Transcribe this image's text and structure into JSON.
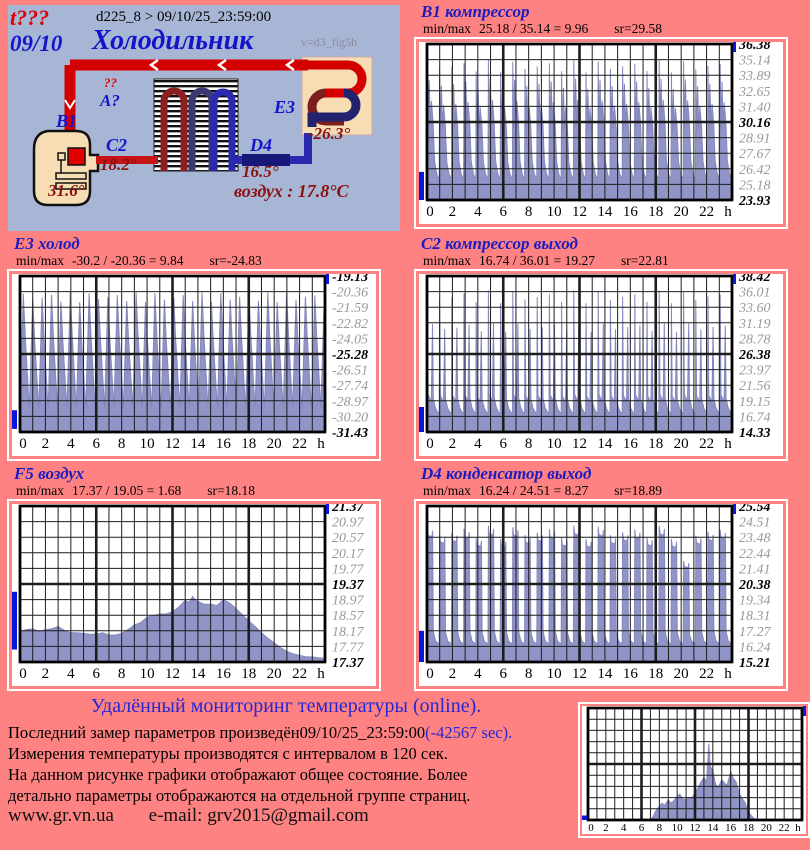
{
  "colors": {
    "page_bg": "#ff8282",
    "panel_bg": "#a8b6d5",
    "title_blue": "#1c1cc0",
    "dark_red": "#8b1212",
    "series_fill": "#9194c7",
    "tick_gray": "#999999",
    "indicator_blue": "#0b16dd"
  },
  "diagram": {
    "t_label": "t???",
    "date_label": "09/10",
    "device_header": "d225_8  >  09/10/25_23:59:00",
    "title": "Холодильник",
    "version": "v=d3_fig5b",
    "labels": {
      "q1": "??",
      "q2": "A?",
      "b1": "B1",
      "c2": "C2",
      "d4": "D4",
      "e3": "E3",
      "t_b1": "31.6°",
      "t_c2": "18.2°",
      "t_d4": "16.5°",
      "t_e3": "-26.3°",
      "air": "воздух : 17.8°C"
    }
  },
  "footer": {
    "heading": "Удалённый мониторинг температуры (online).",
    "line1_black": "Последний замер параметров произведён",
    "line1_time": "09/10/25_23:59:00",
    "line1_blue": "(-42567 sec).",
    "line2": "Измерения температуры  производятся с интервалом в 120 сек.",
    "line3": "На данном рисунке графики отображают общее состояние. Более",
    "line4": "детально параметры отображаются на отдельной группе страниц.",
    "site": "www.gr.vn.ua",
    "email": "e-mail: grv2015@gmail.com"
  },
  "chart_data": [
    {
      "id": "b1",
      "type": "area",
      "title": "B1 компрессор",
      "minmax_label": "min/max",
      "minmax": "25.18 / 35.14 = 9.96",
      "sr": "sr=29.58",
      "stats": {
        "min": 25.18,
        "max": 35.14,
        "range": 9.96,
        "avg": 29.58
      },
      "ylim": [
        23.93,
        36.38
      ],
      "yticks": [
        "36.38",
        "35.14",
        "33.89",
        "32.65",
        "31.40",
        "30.16",
        "28.91",
        "27.67",
        "26.42",
        "25.18",
        "23.93"
      ],
      "xticks": [
        "0",
        "2",
        "4",
        "6",
        "8",
        "10",
        "12",
        "14",
        "16",
        "18",
        "20",
        "22"
      ],
      "xunit": "h",
      "pattern": {
        "kind": "cycles",
        "period_h": 0.96,
        "jitter": 0.5,
        "shape": [
          [
            0,
            25.8
          ],
          [
            0.03,
            34.6
          ],
          [
            0.1,
            29.5
          ],
          [
            0.18,
            33.2
          ],
          [
            0.28,
            29.8
          ],
          [
            0.36,
            31.6
          ],
          [
            0.5,
            30.0
          ],
          [
            0.62,
            27.0
          ],
          [
            0.8,
            26.0
          ],
          [
            0.97,
            25.6
          ]
        ]
      },
      "indicator": [
        0.82,
        1.0
      ]
    },
    {
      "id": "e3",
      "type": "area",
      "title": "E3 холод",
      "minmax_label": "min/max",
      "minmax": "-30.2 / -20.36 = 9.84",
      "sr": "sr=-24.83",
      "stats": {
        "min": -30.2,
        "max": -20.36,
        "range": 9.84,
        "avg": -24.83
      },
      "ylim": [
        -31.43,
        -19.13
      ],
      "yticks": [
        "-19.13",
        "-20.36",
        "-21.59",
        "-22.82",
        "-24.05",
        "-25.28",
        "-26.51",
        "-27.74",
        "-28.97",
        "-30.20",
        "-31.43"
      ],
      "xticks": [
        "0",
        "2",
        "4",
        "6",
        "8",
        "10",
        "12",
        "14",
        "16",
        "18",
        "20",
        "22"
      ],
      "xunit": "h",
      "pattern": {
        "kind": "cycles",
        "period_h": 0.74,
        "jitter": 0.4,
        "shape": [
          [
            0,
            -29.5
          ],
          [
            0.35,
            -20.8
          ],
          [
            0.55,
            -24.0
          ],
          [
            0.97,
            -29.3
          ]
        ]
      },
      "indicator": [
        0.86,
        0.98
      ]
    },
    {
      "id": "c2",
      "type": "area",
      "title": "C2 компрессор выход",
      "minmax_label": "min/max",
      "minmax": "16.74 / 36.01 = 19.27",
      "sr": "sr=22.81",
      "stats": {
        "min": 16.74,
        "max": 36.01,
        "range": 19.27,
        "avg": 22.81
      },
      "ylim": [
        14.33,
        38.42
      ],
      "yticks": [
        "38.42",
        "36.01",
        "33.60",
        "31.19",
        "28.78",
        "26.38",
        "23.97",
        "21.56",
        "19.15",
        "16.74",
        "14.33"
      ],
      "xticks": [
        "0",
        "2",
        "4",
        "6",
        "8",
        "10",
        "12",
        "14",
        "16",
        "18",
        "20",
        "22"
      ],
      "xunit": "h",
      "pattern": {
        "kind": "cycles",
        "period_h": 0.96,
        "jitter": 1.0,
        "shape": [
          [
            0,
            17.4
          ],
          [
            0.03,
            35.2
          ],
          [
            0.1,
            20.0
          ],
          [
            0.35,
            19.0
          ],
          [
            0.45,
            30.5
          ],
          [
            0.52,
            19.5
          ],
          [
            0.7,
            18.0
          ],
          [
            0.97,
            17.1
          ]
        ]
      },
      "indicator": [
        0.84,
        1.0
      ]
    },
    {
      "id": "f5",
      "type": "area",
      "title": "F5 воздух",
      "minmax_label": "min/max",
      "minmax": "17.37 / 19.05 = 1.68",
      "sr": "sr=18.18",
      "stats": {
        "min": 17.37,
        "max": 19.05,
        "range": 1.68,
        "avg": 18.18
      },
      "ylim": [
        17.37,
        21.37
      ],
      "yticks": [
        "21.37",
        "20.97",
        "20.57",
        "20.17",
        "19.77",
        "19.37",
        "18.97",
        "18.57",
        "18.17",
        "17.77",
        "17.37"
      ],
      "xticks": [
        "0",
        "2",
        "4",
        "6",
        "8",
        "10",
        "12",
        "14",
        "16",
        "18",
        "20",
        "22"
      ],
      "xunit": "h",
      "series": [
        [
          0,
          18.15
        ],
        [
          0.5,
          18.2
        ],
        [
          1,
          18.22
        ],
        [
          1.5,
          18.15
        ],
        [
          2,
          18.2
        ],
        [
          2.5,
          18.22
        ],
        [
          3,
          18.28
        ],
        [
          3.5,
          18.18
        ],
        [
          4,
          18.12
        ],
        [
          4.5,
          18.12
        ],
        [
          5,
          18.1
        ],
        [
          5.5,
          18.08
        ],
        [
          6,
          18.08
        ],
        [
          6.5,
          18.12
        ],
        [
          7,
          18.06
        ],
        [
          7.5,
          18.06
        ],
        [
          8,
          18.1
        ],
        [
          8.5,
          18.2
        ],
        [
          9,
          18.32
        ],
        [
          9.5,
          18.38
        ],
        [
          10,
          18.52
        ],
        [
          10.5,
          18.56
        ],
        [
          11,
          18.6
        ],
        [
          11.5,
          18.6
        ],
        [
          12,
          18.66
        ],
        [
          12.5,
          18.78
        ],
        [
          13,
          18.95
        ],
        [
          13.3,
          18.9
        ],
        [
          13.6,
          19.05
        ],
        [
          13.8,
          18.95
        ],
        [
          14,
          18.92
        ],
        [
          14.5,
          18.85
        ],
        [
          15,
          18.85
        ],
        [
          15.5,
          18.82
        ],
        [
          16,
          18.96
        ],
        [
          16.5,
          18.88
        ],
        [
          17,
          18.74
        ],
        [
          17.5,
          18.58
        ],
        [
          18,
          18.42
        ],
        [
          18.5,
          18.28
        ],
        [
          19,
          18.12
        ],
        [
          19.5,
          17.98
        ],
        [
          20,
          17.86
        ],
        [
          20.5,
          17.74
        ],
        [
          21,
          17.64
        ],
        [
          21.5,
          17.58
        ],
        [
          22,
          17.54
        ],
        [
          22.5,
          17.5
        ],
        [
          23,
          17.5
        ],
        [
          23.5,
          17.48
        ],
        [
          24,
          17.46
        ]
      ],
      "indicator": [
        0.55,
        0.92
      ]
    },
    {
      "id": "d4",
      "type": "area",
      "title": "D4 конденсатор выход",
      "minmax_label": "min/max",
      "minmax": "16.24 / 24.51 = 8.27",
      "sr": "sr=18.89",
      "stats": {
        "min": 16.24,
        "max": 24.51,
        "range": 8.27,
        "avg": 18.89
      },
      "ylim": [
        15.21,
        25.54
      ],
      "yticks": [
        "25.54",
        "24.51",
        "23.48",
        "22.44",
        "21.41",
        "20.38",
        "19.34",
        "18.31",
        "17.27",
        "16.24",
        "15.21"
      ],
      "xticks": [
        "0",
        "2",
        "4",
        "6",
        "8",
        "10",
        "12",
        "14",
        "16",
        "18",
        "20",
        "22"
      ],
      "xunit": "h",
      "pattern": {
        "kind": "cycles",
        "period_h": 0.96,
        "jitter": 0.45,
        "peak_overrides": {
          "21": 21.9
        },
        "shape": [
          [
            0,
            16.5
          ],
          [
            0.03,
            23.8
          ],
          [
            0.1,
            23.3
          ],
          [
            0.4,
            23.2
          ],
          [
            0.46,
            23.6
          ],
          [
            0.52,
            17.2
          ],
          [
            0.7,
            16.6
          ],
          [
            0.97,
            16.4
          ]
        ]
      },
      "indicator": [
        0.8,
        1.0
      ]
    },
    {
      "id": "overview",
      "type": "area",
      "title": "",
      "minmax_label": "",
      "minmax": "",
      "sr": "",
      "ylim": [
        0,
        10
      ],
      "yticks": [],
      "xticks": [
        "0",
        "2",
        "4",
        "6",
        "8",
        "10",
        "12",
        "14",
        "16",
        "18",
        "20",
        "22"
      ],
      "xunit": "h",
      "series": [
        [
          0,
          0
        ],
        [
          7,
          0
        ],
        [
          7.3,
          0.3
        ],
        [
          7.6,
          0.8
        ],
        [
          8,
          1.2
        ],
        [
          8.3,
          1.5
        ],
        [
          8.6,
          1.3
        ],
        [
          9,
          1.8
        ],
        [
          9.3,
          1.5
        ],
        [
          9.6,
          1.7
        ],
        [
          10,
          2.1
        ],
        [
          10.3,
          2.3
        ],
        [
          10.6,
          1.9
        ],
        [
          11,
          1.8
        ],
        [
          11.3,
          2.0
        ],
        [
          11.6,
          1.9
        ],
        [
          12,
          2.4
        ],
        [
          12.3,
          2.8
        ],
        [
          12.6,
          3.3
        ],
        [
          13,
          3.8
        ],
        [
          13.3,
          3.4
        ],
        [
          13.55,
          6.8
        ],
        [
          13.7,
          4.8
        ],
        [
          14,
          4.4
        ],
        [
          14.3,
          3.2
        ],
        [
          14.6,
          2.9
        ],
        [
          15,
          3.6
        ],
        [
          15.3,
          3.3
        ],
        [
          15.6,
          3.1
        ],
        [
          16,
          4.3
        ],
        [
          16.3,
          3.7
        ],
        [
          16.6,
          3.4
        ],
        [
          17,
          2.3
        ],
        [
          17.3,
          1.9
        ],
        [
          17.6,
          1.6
        ],
        [
          18,
          0.7
        ],
        [
          18.4,
          0.3
        ],
        [
          18.7,
          0.1
        ],
        [
          19,
          0
        ],
        [
          24,
          0
        ]
      ],
      "indicator": [
        0.96,
        1.0
      ]
    }
  ]
}
